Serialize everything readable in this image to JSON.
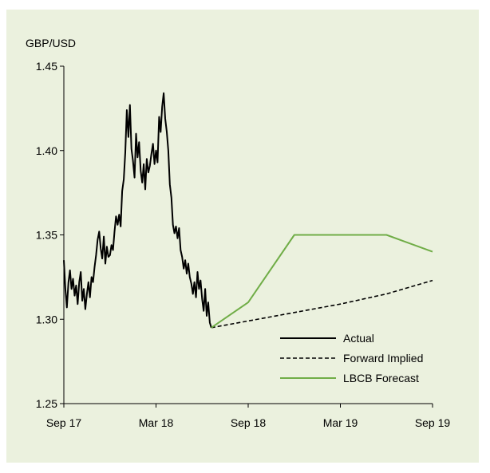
{
  "chart_data": {
    "type": "line",
    "ylabel": "GBP/USD",
    "ylim": [
      1.25,
      1.45
    ],
    "y_ticks": [
      "1.45",
      "1.40",
      "1.35",
      "1.30",
      "1.25"
    ],
    "x_ticks": [
      "Sep 17",
      "Mar 18",
      "Sep 18",
      "Mar 19",
      "Sep 19"
    ],
    "x_tick_months": [
      0,
      6,
      12,
      18,
      24
    ],
    "xlim_months": [
      0,
      24
    ],
    "grid": false,
    "legend_position": "bottom-right",
    "series": [
      {
        "name": "Actual",
        "color": "#000000",
        "style": "solid",
        "points": [
          [
            0.0,
            1.335
          ],
          [
            0.1,
            1.318
          ],
          [
            0.2,
            1.307
          ],
          [
            0.3,
            1.322
          ],
          [
            0.4,
            1.329
          ],
          [
            0.5,
            1.318
          ],
          [
            0.6,
            1.324
          ],
          [
            0.7,
            1.314
          ],
          [
            0.8,
            1.32
          ],
          [
            0.9,
            1.309
          ],
          [
            1.0,
            1.322
          ],
          [
            1.1,
            1.328
          ],
          [
            1.2,
            1.311
          ],
          [
            1.3,
            1.318
          ],
          [
            1.4,
            1.306
          ],
          [
            1.5,
            1.315
          ],
          [
            1.6,
            1.322
          ],
          [
            1.7,
            1.313
          ],
          [
            1.8,
            1.325
          ],
          [
            1.9,
            1.322
          ],
          [
            2.0,
            1.331
          ],
          [
            2.1,
            1.338
          ],
          [
            2.2,
            1.347
          ],
          [
            2.3,
            1.352
          ],
          [
            2.4,
            1.342
          ],
          [
            2.5,
            1.336
          ],
          [
            2.6,
            1.349
          ],
          [
            2.7,
            1.333
          ],
          [
            2.8,
            1.343
          ],
          [
            2.9,
            1.337
          ],
          [
            3.0,
            1.338
          ],
          [
            3.1,
            1.344
          ],
          [
            3.2,
            1.341
          ],
          [
            3.3,
            1.352
          ],
          [
            3.4,
            1.361
          ],
          [
            3.5,
            1.356
          ],
          [
            3.6,
            1.362
          ],
          [
            3.7,
            1.355
          ],
          [
            3.8,
            1.376
          ],
          [
            3.9,
            1.383
          ],
          [
            4.0,
            1.399
          ],
          [
            4.1,
            1.424
          ],
          [
            4.2,
            1.408
          ],
          [
            4.3,
            1.427
          ],
          [
            4.4,
            1.401
          ],
          [
            4.5,
            1.394
          ],
          [
            4.6,
            1.384
          ],
          [
            4.7,
            1.41
          ],
          [
            4.8,
            1.396
          ],
          [
            4.9,
            1.405
          ],
          [
            5.0,
            1.388
          ],
          [
            5.1,
            1.381
          ],
          [
            5.2,
            1.392
          ],
          [
            5.3,
            1.377
          ],
          [
            5.4,
            1.395
          ],
          [
            5.5,
            1.387
          ],
          [
            5.6,
            1.391
          ],
          [
            5.7,
            1.398
          ],
          [
            5.8,
            1.404
          ],
          [
            5.9,
            1.392
          ],
          [
            6.0,
            1.4
          ],
          [
            6.1,
            1.393
          ],
          [
            6.2,
            1.42
          ],
          [
            6.3,
            1.411
          ],
          [
            6.4,
            1.426
          ],
          [
            6.5,
            1.434
          ],
          [
            6.6,
            1.419
          ],
          [
            6.7,
            1.411
          ],
          [
            6.8,
            1.4
          ],
          [
            6.9,
            1.38
          ],
          [
            7.0,
            1.372
          ],
          [
            7.1,
            1.356
          ],
          [
            7.2,
            1.351
          ],
          [
            7.3,
            1.355
          ],
          [
            7.4,
            1.348
          ],
          [
            7.5,
            1.354
          ],
          [
            7.6,
            1.341
          ],
          [
            7.7,
            1.337
          ],
          [
            7.8,
            1.33
          ],
          [
            7.9,
            1.335
          ],
          [
            8.0,
            1.327
          ],
          [
            8.1,
            1.333
          ],
          [
            8.2,
            1.325
          ],
          [
            8.3,
            1.321
          ],
          [
            8.4,
            1.315
          ],
          [
            8.5,
            1.322
          ],
          [
            8.6,
            1.313
          ],
          [
            8.7,
            1.328
          ],
          [
            8.8,
            1.318
          ],
          [
            8.9,
            1.323
          ],
          [
            9.0,
            1.312
          ],
          [
            9.1,
            1.305
          ],
          [
            9.2,
            1.318
          ],
          [
            9.3,
            1.302
          ],
          [
            9.4,
            1.31
          ],
          [
            9.5,
            1.298
          ],
          [
            9.6,
            1.295
          ]
        ]
      },
      {
        "name": "Forward Implied",
        "color": "#000000",
        "style": "dashed",
        "points": [
          [
            9.6,
            1.295
          ],
          [
            12.0,
            1.299
          ],
          [
            15.0,
            1.304
          ],
          [
            18.0,
            1.309
          ],
          [
            21.0,
            1.315
          ],
          [
            24.0,
            1.323
          ]
        ]
      },
      {
        "name": "LBCB Forecast",
        "color": "#70ad47",
        "style": "solid",
        "points": [
          [
            9.6,
            1.295
          ],
          [
            12.0,
            1.31
          ],
          [
            15.0,
            1.35
          ],
          [
            21.0,
            1.35
          ],
          [
            24.0,
            1.34
          ]
        ]
      }
    ]
  }
}
